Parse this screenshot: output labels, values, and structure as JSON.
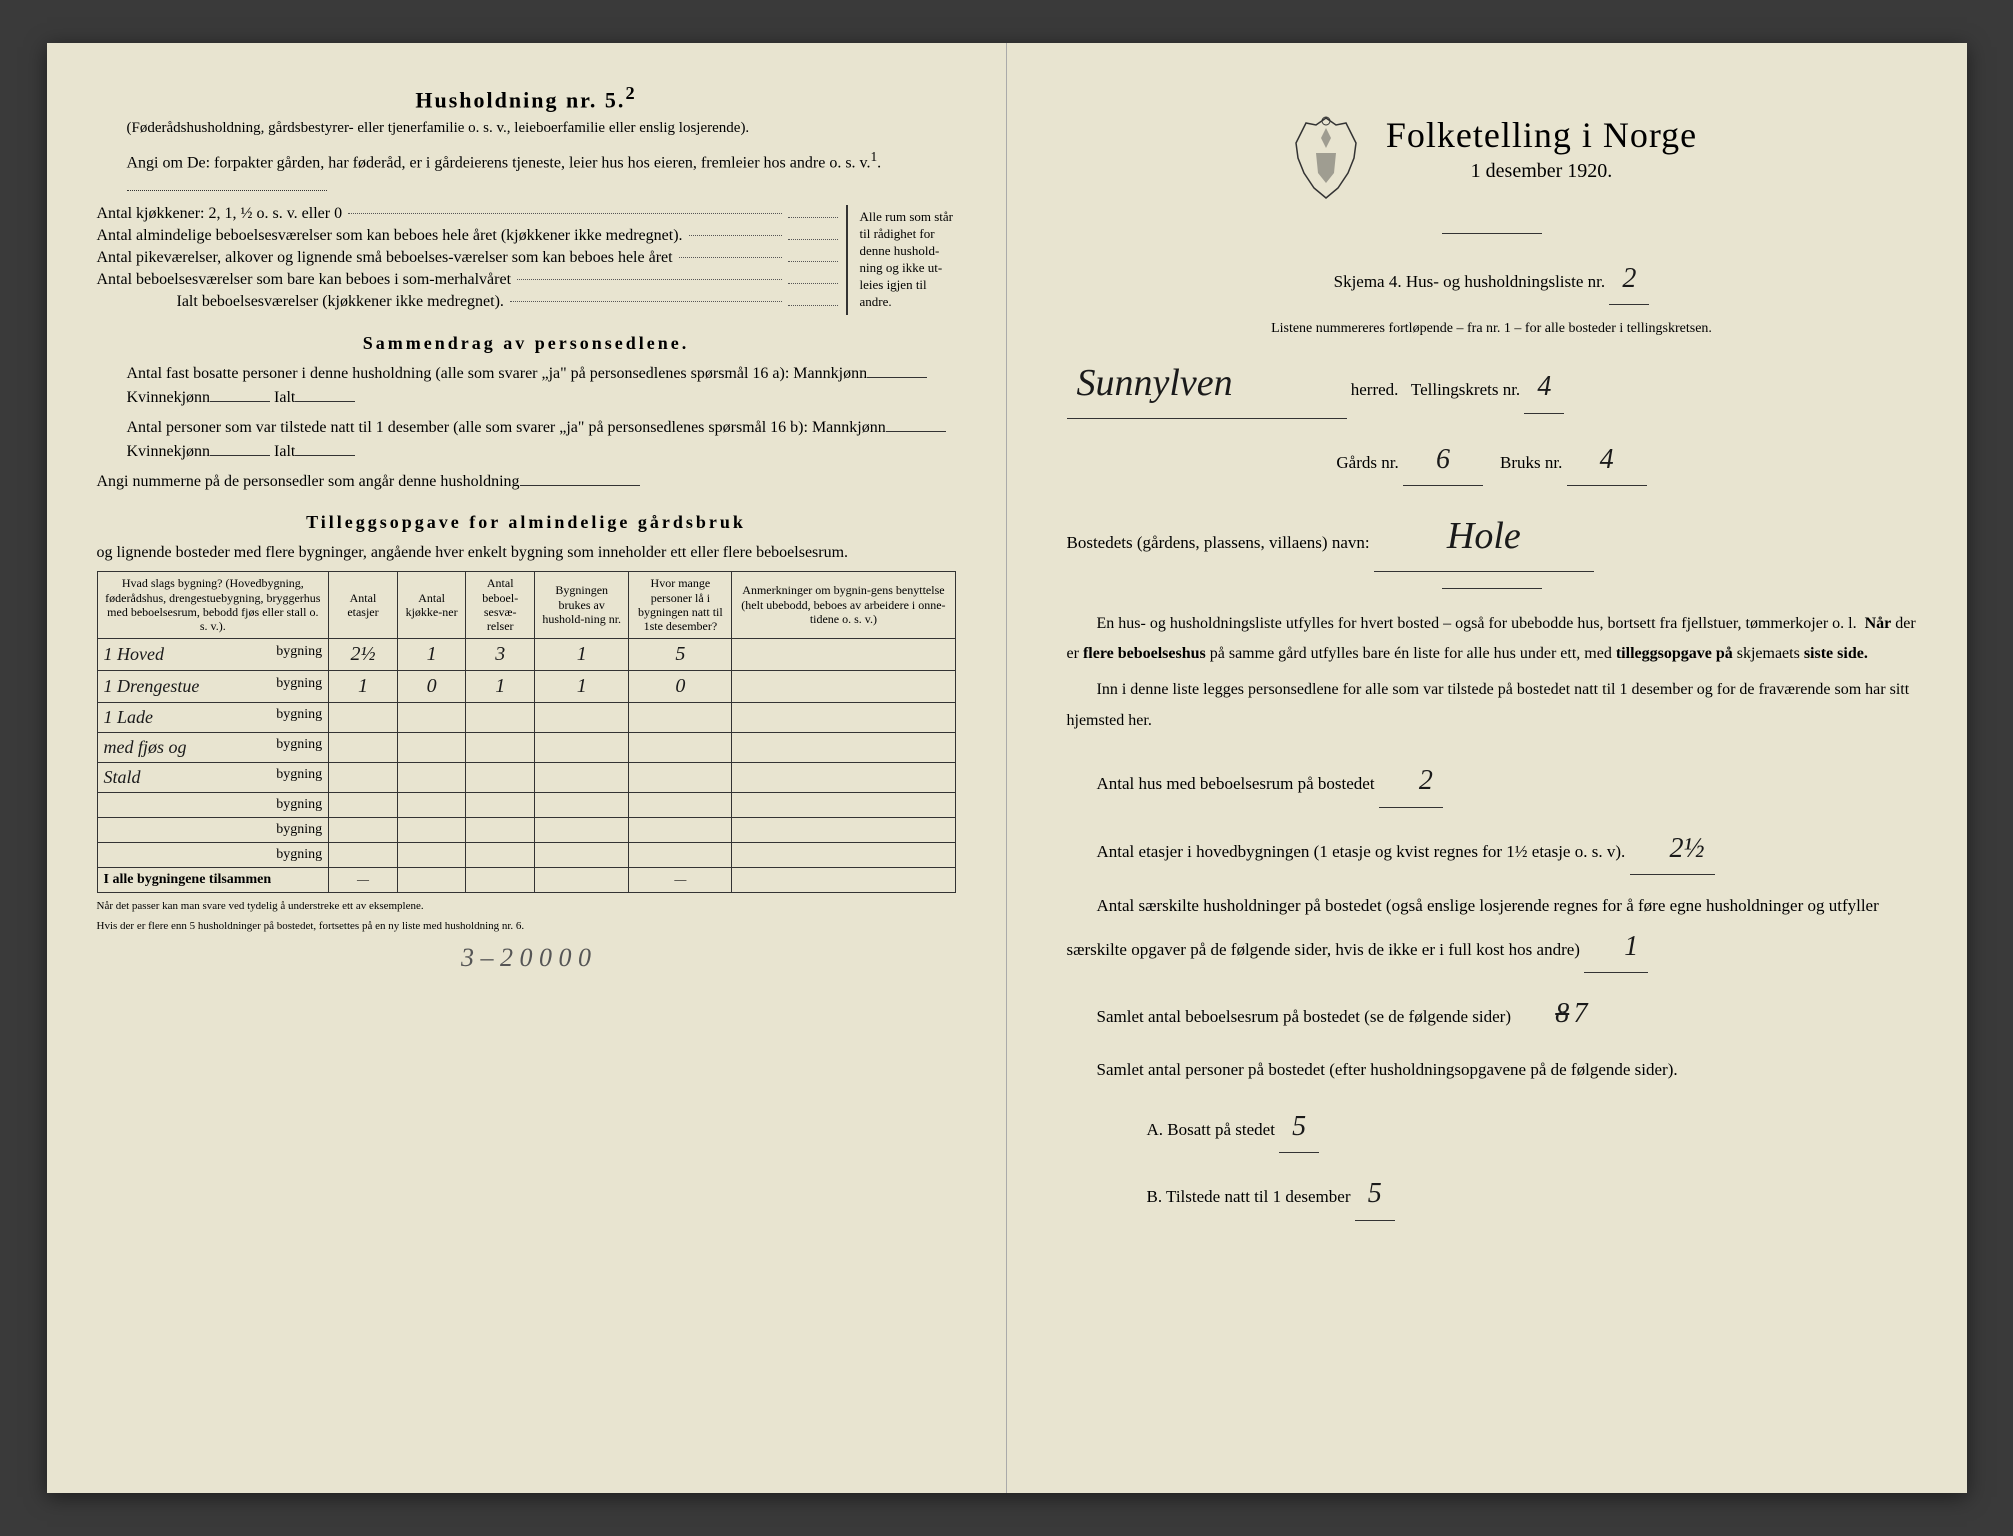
{
  "left": {
    "husholdning_title": "Husholdning nr. 5.",
    "husholdning_sup": "2",
    "husholdning_note": "(Føderådshusholdning, gårdsbestyrer- eller tjenerfamilie o. s. v., leieboerfamilie eller enslig losjerende).",
    "angi_om": "Angi om De: forpakter gården, har føderåd, er i gårdeierens tjeneste, leier hus hos eieren, fremleier hos andre o. s. v.",
    "angi_sup": "1",
    "kitchen_line": "Antal kjøkkener: 2, 1, ½ o. s. v. eller 0",
    "room_lines": [
      "Antal almindelige beboelsesværelser som kan beboes hele året (kjøkkener ikke medregnet).",
      "Antal pikeværelser, alkover og lignende små beboelses-værelser som kan beboes hele året",
      "Antal beboelsesværelser som bare kan beboes i som-merhalvåret"
    ],
    "total_rooms": "Ialt beboelsesværelser (kjøkkener ikke medregnet).",
    "brace_text": "Alle rum som står til rådighet for denne hushold-ning og ikke ut-leies igjen til andre.",
    "sammendrag_title": "Sammendrag av personsedlene.",
    "sammendrag_l1": "Antal fast bosatte personer i denne husholdning (alle som svarer „ja\" på personsedlenes spørsmål 16 a): Mannkjønn",
    "kvinnekjonn": "Kvinnekjønn",
    "ialt": "Ialt",
    "sammendrag_l2": "Antal personer som var tilstede natt til 1 desember (alle som svarer „ja\" på personsedlenes spørsmål 16 b): Mannkjønn",
    "angi_num": "Angi nummerne på de personsedler som angår denne husholdning",
    "tillegg_title": "Tilleggsopgave for almindelige gårdsbruk",
    "tillegg_intro": "og lignende bosteder med flere bygninger, angående hver enkelt bygning som inneholder ett eller flere beboelsesrum.",
    "table": {
      "headers": [
        "Hvad slags bygning?\n(Hovedbygning, føderådshus, drengestuebygning, bryggerhus med beboelsesrum, bebodd fjøs eller stall o. s. v.).",
        "Antal etasjer",
        "Antal kjøkke-ner",
        "Antal beboel-sesvæ-relser",
        "Bygningen brukes av hushold-ning nr.",
        "Hvor mange personer lå i bygningen natt til 1ste desember?",
        "Anmerkninger om bygnin-gens benyttelse (helt ubebodd, beboes av arbeidere i onne-tidene o. s. v.)"
      ],
      "rows": [
        {
          "label": "1 Hoved",
          "suffix": "bygning",
          "vals": [
            "2½",
            "1",
            "3",
            "1",
            "5",
            ""
          ]
        },
        {
          "label": "1 Drengestue",
          "suffix": "bygning",
          "vals": [
            "1",
            "0",
            "1",
            "1",
            "0",
            ""
          ]
        },
        {
          "label": "1 Lade",
          "suffix": "bygning",
          "vals": [
            "",
            "",
            "",
            "",
            "",
            ""
          ]
        },
        {
          "label": "med fjøs og",
          "suffix": "bygning",
          "vals": [
            "",
            "",
            "",
            "",
            "",
            ""
          ]
        },
        {
          "label": "Stald",
          "suffix": "bygning",
          "vals": [
            "",
            "",
            "",
            "",
            "",
            ""
          ]
        },
        {
          "label": "",
          "suffix": "bygning",
          "vals": [
            "",
            "",
            "",
            "",
            "",
            ""
          ]
        },
        {
          "label": "",
          "suffix": "bygning",
          "vals": [
            "",
            "",
            "",
            "",
            "",
            ""
          ]
        },
        {
          "label": "",
          "suffix": "bygning",
          "vals": [
            "",
            "",
            "",
            "",
            "",
            ""
          ]
        }
      ],
      "total_row": "I alle bygningene tilsammen",
      "total_vals": [
        "—",
        "",
        "",
        "",
        "—",
        ""
      ]
    },
    "foot1": "Når det passer kan man svare ved tydelig å understreke ett av eksemplene.",
    "foot2": "Hvis der er flere enn 5 husholdninger på bostedet, fortsettes på en ny liste med husholdning nr. 6.",
    "bottom_hw": "3 – 2 0 0  0 0"
  },
  "right": {
    "main_title": "Folketelling i Norge",
    "date": "1 desember 1920.",
    "skjema": "Skjema 4.  Hus- og husholdningsliste nr.",
    "skjema_val": "2",
    "listene": "Listene nummereres fortløpende – fra nr. 1 – for alle bosteder i tellingskretsen.",
    "herred_val": "Sunnylven",
    "herred_lbl": "herred.",
    "tellingskrets_lbl": "Tellingskrets nr.",
    "tellingskrets_val": "4",
    "gards_lbl": "Gårds nr.",
    "gards_val": "6",
    "bruks_lbl": "Bruks nr.",
    "bruks_val": "4",
    "bosted_lbl": "Bostedets (gårdens, plassens, villaens) navn:",
    "bosted_val": "Hole",
    "para1": "En hus- og husholdningsliste utfylles for hvert bosted – også for ubebodde hus, bortsett fra fjellstuer, tømmerkojer o. l.  Når der er flere beboelseshus på samme gård utfylles bare én liste for alle hus under ett, med tilleggsopgave på skjemaets siste side.",
    "para2": "Inn i denne liste legges personsedlene for alle som var tilstede på bostedet natt til 1 desember og for de fraværende som har sitt hjemsted her.",
    "q1_lbl": "Antal hus med beboelsesrum på bostedet",
    "q1_val": "2",
    "q2_lbl": "Antal etasjer i hovedbygningen (1 etasje og kvist regnes for 1½ etasje o. s. v).",
    "q2_val": "2½",
    "q3_lbl": "Antal særskilte husholdninger på bostedet (også enslige losjerende regnes for å føre egne husholdninger og utfyller særskilte opgaver på de følgende sider, hvis de ikke er i full kost hos andre)",
    "q3_val": "1",
    "q4_lbl": "Samlet antal beboelsesrum på bostedet (se de følgende sider)",
    "q4_val_strike": "8",
    "q4_val": "7",
    "q5_lbl": "Samlet antal personer på bostedet (efter husholdningsopgavene på de følgende sider).",
    "qA_lbl": "A.  Bosatt på stedet",
    "qA_val": "5",
    "qB_lbl": "B.  Tilstede natt til 1 desember",
    "qB_val": "5"
  },
  "colors": {
    "paper": "#e8e4d0",
    "ink": "#1a1a1a",
    "bg": "#3a3a3a"
  }
}
